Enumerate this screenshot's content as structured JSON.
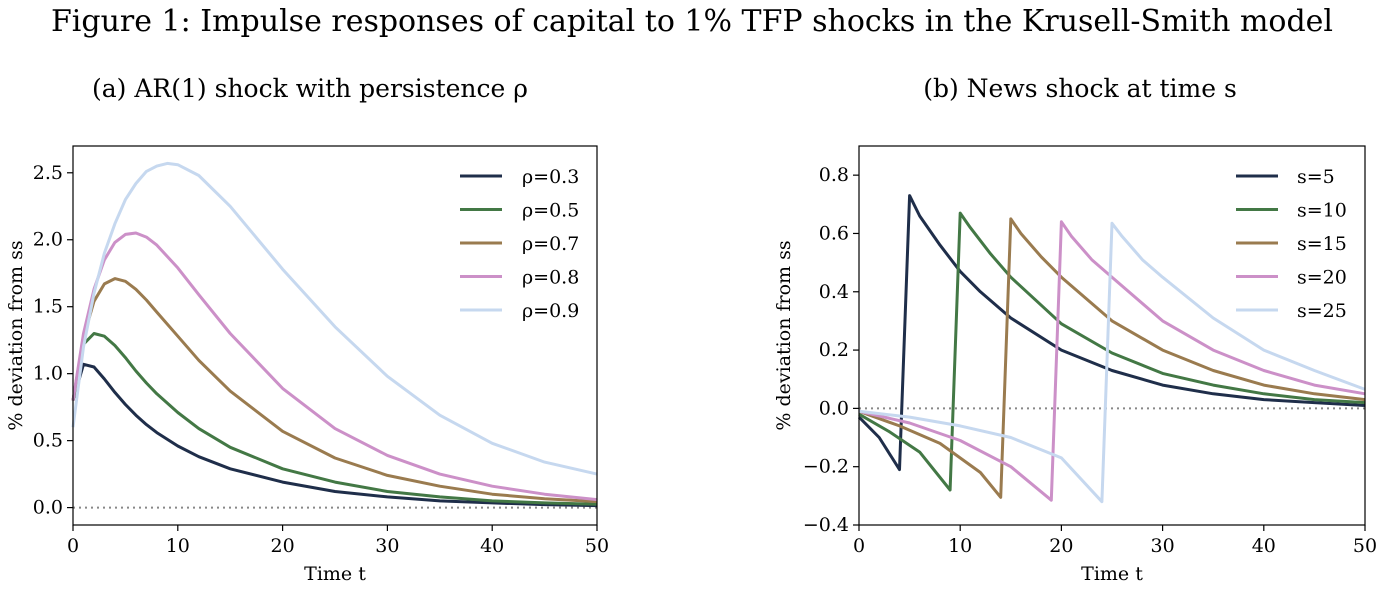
{
  "figure_title": "Figure 1: Impulse responses of capital to 1% TFP shocks in the Krusell-Smith model",
  "chart_data": [
    {
      "type": "line",
      "panel_title": "(a) AR(1) shock with persistence ρ",
      "xlabel": "Time t",
      "ylabel": "% deviation from ss",
      "xlim": [
        0,
        50
      ],
      "ylim": [
        -0.13,
        2.7
      ],
      "xticks": [
        0,
        10,
        20,
        30,
        40,
        50
      ],
      "yticks": [
        0.0,
        0.5,
        1.0,
        1.5,
        2.0,
        2.5
      ],
      "ytick_labels": [
        "0.0",
        "0.5",
        "1.0",
        "1.5",
        "2.0",
        "2.5"
      ],
      "reference_line": 0,
      "legend_position": "top-right",
      "series": [
        {
          "name": "ρ=0.3",
          "color": "#1f2e4a",
          "points": [
            [
              0,
              0.8
            ],
            [
              1,
              1.07
            ],
            [
              2,
              1.05
            ],
            [
              3,
              0.96
            ],
            [
              4,
              0.86
            ],
            [
              5,
              0.77
            ],
            [
              6,
              0.69
            ],
            [
              7,
              0.62
            ],
            [
              8,
              0.56
            ],
            [
              10,
              0.46
            ],
            [
              12,
              0.38
            ],
            [
              15,
              0.29
            ],
            [
              20,
              0.19
            ],
            [
              25,
              0.12
            ],
            [
              30,
              0.08
            ],
            [
              35,
              0.05
            ],
            [
              40,
              0.035
            ],
            [
              45,
              0.022
            ],
            [
              50,
              0.015
            ]
          ]
        },
        {
          "name": "ρ=0.5",
          "color": "#437845",
          "points": [
            [
              0,
              0.8
            ],
            [
              1,
              1.22
            ],
            [
              2,
              1.3
            ],
            [
              3,
              1.28
            ],
            [
              4,
              1.21
            ],
            [
              5,
              1.12
            ],
            [
              6,
              1.02
            ],
            [
              7,
              0.93
            ],
            [
              8,
              0.85
            ],
            [
              10,
              0.71
            ],
            [
              12,
              0.59
            ],
            [
              15,
              0.45
            ],
            [
              20,
              0.29
            ],
            [
              25,
              0.19
            ],
            [
              30,
              0.12
            ],
            [
              35,
              0.08
            ],
            [
              40,
              0.05
            ],
            [
              45,
              0.035
            ],
            [
              50,
              0.025
            ]
          ]
        },
        {
          "name": "ρ=0.7",
          "color": "#9a7b4f",
          "points": [
            [
              0,
              0.8
            ],
            [
              1,
              1.27
            ],
            [
              2,
              1.54
            ],
            [
              3,
              1.67
            ],
            [
              4,
              1.71
            ],
            [
              5,
              1.69
            ],
            [
              6,
              1.63
            ],
            [
              7,
              1.55
            ],
            [
              8,
              1.46
            ],
            [
              10,
              1.28
            ],
            [
              12,
              1.1
            ],
            [
              15,
              0.87
            ],
            [
              20,
              0.57
            ],
            [
              25,
              0.37
            ],
            [
              30,
              0.24
            ],
            [
              35,
              0.16
            ],
            [
              40,
              0.1
            ],
            [
              45,
              0.066
            ],
            [
              50,
              0.045
            ]
          ]
        },
        {
          "name": "ρ=0.8",
          "color": "#cc90c8",
          "points": [
            [
              0,
              0.8
            ],
            [
              1,
              1.3
            ],
            [
              2,
              1.63
            ],
            [
              3,
              1.85
            ],
            [
              4,
              1.98
            ],
            [
              5,
              2.04
            ],
            [
              6,
              2.05
            ],
            [
              7,
              2.02
            ],
            [
              8,
              1.96
            ],
            [
              10,
              1.79
            ],
            [
              12,
              1.59
            ],
            [
              15,
              1.3
            ],
            [
              20,
              0.89
            ],
            [
              25,
              0.59
            ],
            [
              30,
              0.39
            ],
            [
              35,
              0.25
            ],
            [
              40,
              0.16
            ],
            [
              45,
              0.1
            ],
            [
              50,
              0.06
            ]
          ]
        },
        {
          "name": "ρ=0.9",
          "color": "#c6d8ef",
          "points": [
            [
              0,
              0.6
            ],
            [
              1,
              1.2
            ],
            [
              2,
              1.6
            ],
            [
              3,
              1.9
            ],
            [
              4,
              2.12
            ],
            [
              5,
              2.3
            ],
            [
              6,
              2.42
            ],
            [
              7,
              2.51
            ],
            [
              8,
              2.55
            ],
            [
              9,
              2.57
            ],
            [
              10,
              2.56
            ],
            [
              12,
              2.48
            ],
            [
              15,
              2.25
            ],
            [
              20,
              1.78
            ],
            [
              25,
              1.35
            ],
            [
              30,
              0.98
            ],
            [
              35,
              0.69
            ],
            [
              40,
              0.48
            ],
            [
              45,
              0.34
            ],
            [
              50,
              0.25
            ]
          ]
        }
      ]
    },
    {
      "type": "line",
      "panel_title": "(b) News shock at time s",
      "xlabel": "Time t",
      "ylabel": "% deviation from ss",
      "xlim": [
        0,
        50
      ],
      "ylim": [
        -0.4,
        0.9
      ],
      "xticks": [
        0,
        10,
        20,
        30,
        40,
        50
      ],
      "yticks": [
        -0.4,
        -0.2,
        0.0,
        0.2,
        0.4,
        0.6,
        0.8
      ],
      "ytick_labels": [
        "−0.4",
        "−0.2",
        "0.0",
        "0.2",
        "0.4",
        "0.6",
        "0.8"
      ],
      "reference_line": 0,
      "legend_position": "top-right",
      "series": [
        {
          "name": "s=5",
          "color": "#1f2e4a",
          "points": [
            [
              0,
              -0.03
            ],
            [
              2,
              -0.1
            ],
            [
              4,
              -0.21
            ],
            [
              5,
              0.73
            ],
            [
              6,
              0.66
            ],
            [
              8,
              0.56
            ],
            [
              10,
              0.47
            ],
            [
              12,
              0.4
            ],
            [
              15,
              0.31
            ],
            [
              20,
              0.2
            ],
            [
              25,
              0.13
            ],
            [
              30,
              0.08
            ],
            [
              35,
              0.05
            ],
            [
              40,
              0.03
            ],
            [
              45,
              0.02
            ],
            [
              50,
              0.01
            ]
          ]
        },
        {
          "name": "s=10",
          "color": "#437845",
          "points": [
            [
              0,
              -0.02
            ],
            [
              3,
              -0.08
            ],
            [
              6,
              -0.15
            ],
            [
              9,
              -0.28
            ],
            [
              10,
              0.67
            ],
            [
              11,
              0.62
            ],
            [
              13,
              0.53
            ],
            [
              15,
              0.45
            ],
            [
              20,
              0.29
            ],
            [
              25,
              0.19
            ],
            [
              30,
              0.12
            ],
            [
              35,
              0.08
            ],
            [
              40,
              0.05
            ],
            [
              45,
              0.03
            ],
            [
              50,
              0.02
            ]
          ]
        },
        {
          "name": "s=15",
          "color": "#9a7b4f",
          "points": [
            [
              0,
              -0.01
            ],
            [
              4,
              -0.06
            ],
            [
              8,
              -0.12
            ],
            [
              12,
              -0.22
            ],
            [
              14,
              -0.305
            ],
            [
              15,
              0.65
            ],
            [
              16,
              0.6
            ],
            [
              18,
              0.52
            ],
            [
              20,
              0.45
            ],
            [
              25,
              0.3
            ],
            [
              30,
              0.2
            ],
            [
              35,
              0.13
            ],
            [
              40,
              0.08
            ],
            [
              45,
              0.05
            ],
            [
              50,
              0.03
            ]
          ]
        },
        {
          "name": "s=20",
          "color": "#cc90c8",
          "points": [
            [
              0,
              -0.01
            ],
            [
              5,
              -0.05
            ],
            [
              10,
              -0.11
            ],
            [
              15,
              -0.2
            ],
            [
              19,
              -0.315
            ],
            [
              20,
              0.64
            ],
            [
              21,
              0.59
            ],
            [
              23,
              0.51
            ],
            [
              25,
              0.45
            ],
            [
              30,
              0.3
            ],
            [
              35,
              0.2
            ],
            [
              40,
              0.13
            ],
            [
              45,
              0.08
            ],
            [
              50,
              0.05
            ]
          ]
        },
        {
          "name": "s=25",
          "color": "#c6d8ef",
          "points": [
            [
              0,
              -0.01
            ],
            [
              5,
              -0.03
            ],
            [
              10,
              -0.06
            ],
            [
              15,
              -0.1
            ],
            [
              20,
              -0.17
            ],
            [
              24,
              -0.32
            ],
            [
              25,
              0.635
            ],
            [
              26,
              0.59
            ],
            [
              28,
              0.51
            ],
            [
              30,
              0.45
            ],
            [
              35,
              0.31
            ],
            [
              40,
              0.2
            ],
            [
              45,
              0.13
            ],
            [
              50,
              0.065
            ]
          ]
        }
      ]
    }
  ]
}
